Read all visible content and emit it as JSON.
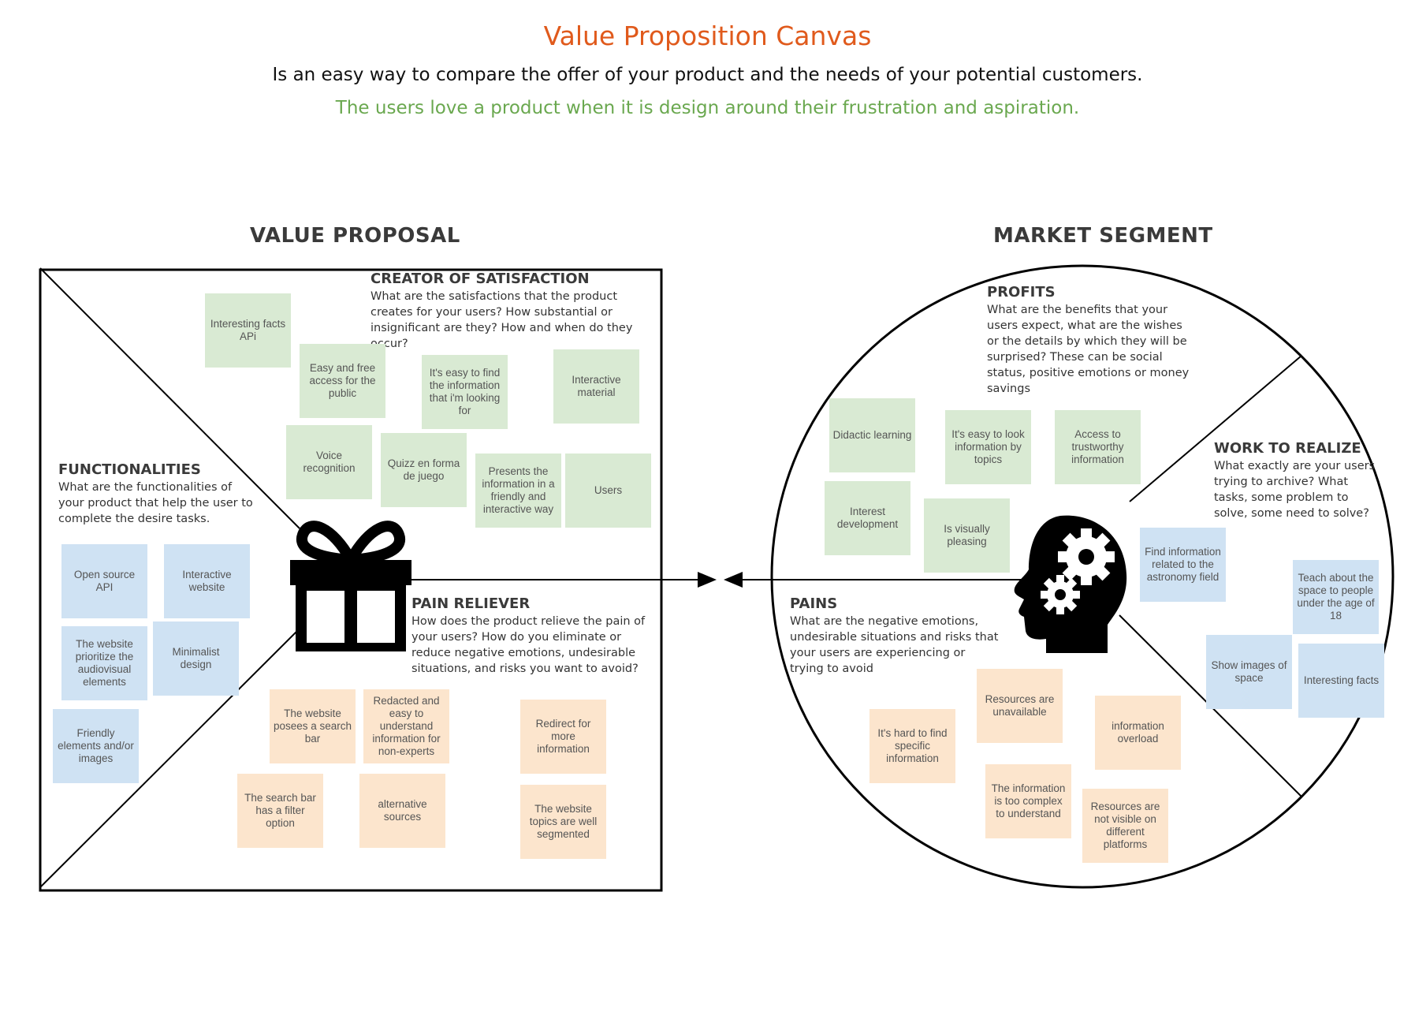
{
  "header": {
    "title": "Value Proposition Canvas",
    "subtitle": "Is an easy way to compare the offer of your product and the needs of your potential customers.",
    "tagline": "The users love a product when it is design around their frustration and aspiration."
  },
  "value_proposal": {
    "heading": "VALUE PROPOSAL",
    "creator": {
      "title": "CREATOR OF SATISFACTION",
      "desc": "What are the satisfactions that the product creates for your users? How substantial or insignificant are they? How and when do they occur?",
      "notes": [
        "Interesting facts APi",
        "Easy and free access for the public",
        "It's easy to find the information that i'm looking for",
        "Interactive material",
        "Voice recognition",
        "Quizz en forma de juego",
        "Presents the information in a friendly and interactive way",
        "Users"
      ]
    },
    "functionalities": {
      "title": "FUNCTIONALITIES",
      "desc": "What are the functionalities of your product that help the user to complete the desire tasks.",
      "notes": [
        "Open source API",
        "Interactive website",
        "The website prioritize the audiovisual elements",
        "Minimalist design",
        "Friendly elements and/or images"
      ]
    },
    "pain_reliever": {
      "title": "PAIN RELIEVER",
      "desc": "How does the product relieve the pain of your users? How do you eliminate or reduce negative emotions, undesirable situations, and risks you want to avoid?",
      "notes": [
        "The website posees a search bar",
        "Redacted and easy to understand information for non-experts",
        "Redirect for more information",
        "The search bar has a filter option",
        "alternative sources",
        "The website topics are well segmented"
      ]
    },
    "icon": "gift-icon"
  },
  "market_segment": {
    "heading": "MARKET SEGMENT",
    "profits": {
      "title": "PROFITS",
      "desc": "What are the benefits that your users expect, what are the wishes or the details by which they will be surprised? These can be social status, positive emotions or money savings",
      "notes": [
        "Didactic learning",
        "It's easy to look information by topics",
        "Access to trustworthy information",
        "Interest development",
        "Is visually pleasing"
      ]
    },
    "work": {
      "title": "WORK TO REALIZE",
      "desc": "What exactly are your users trying to archive? What tasks, some problem to solve, some need to solve?",
      "notes": [
        "Find information related to the astronomy field",
        "Teach about the space to people under the age of 18",
        "Show images of space",
        "Interesting facts"
      ]
    },
    "pains": {
      "title": "PAINS",
      "desc": "What are the negative emotions, undesirable situations and risks that your users are experiencing or trying to avoid",
      "notes": [
        "Resources are unavailable",
        "It's hard to find specific information",
        "information overload",
        "The information is too complex to understand",
        "Resources are not visible on different platforms"
      ]
    },
    "icon": "head-gears-icon"
  },
  "colors": {
    "title": "#e05a1c",
    "tagline": "#6aa84f",
    "green_note": "#d9ead3",
    "blue_note": "#cfe2f3",
    "orange_note": "#fce5cd"
  }
}
